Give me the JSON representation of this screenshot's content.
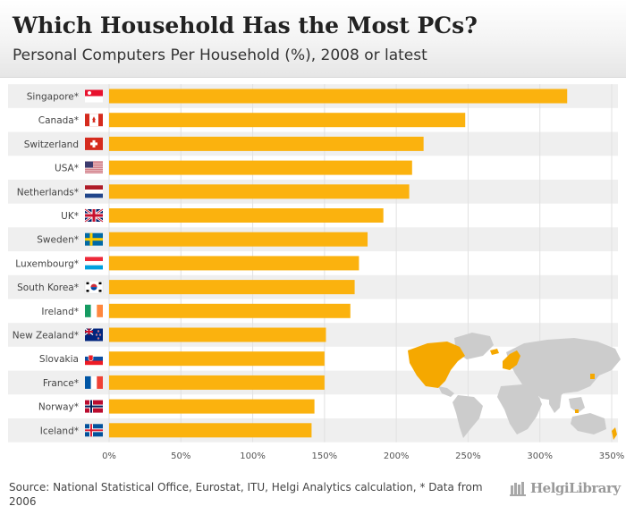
{
  "header": {
    "title": "Which Household Has the Most PCs?",
    "subtitle": "Personal Computers Per Household (%), 2008 or latest"
  },
  "footer": {
    "source": "Source: National Statistical Office, Eurostat, ITU, Helgi Analytics calculation, * Data from 2006",
    "brand": "HelgiLibrary"
  },
  "colors": {
    "bar": "#FBB20E",
    "row_band": "#EFEFEF",
    "map_land": "#CCCCCC",
    "map_highlight": "#F5A800"
  },
  "chart_data": {
    "type": "bar",
    "orientation": "horizontal",
    "title": "Which Household Has the Most PCs?",
    "subtitle": "Personal Computers Per Household (%), 2008 or latest",
    "categories": [
      "Singapore*",
      "Canada*",
      "Switzerland",
      "USA*",
      "Netherlands*",
      "UK*",
      "Sweden*",
      "Luxembourg*",
      "South Korea*",
      "Ireland*",
      "New Zealand*",
      "Slovakia",
      "France*",
      "Norway*",
      "Iceland*"
    ],
    "flags": [
      "singapore-flag",
      "canada-flag",
      "switzerland-flag",
      "usa-flag",
      "netherlands-flag",
      "uk-flag",
      "sweden-flag",
      "luxembourg-flag",
      "south-korea-flag",
      "ireland-flag",
      "new-zealand-flag",
      "slovakia-flag",
      "france-flag",
      "norway-flag",
      "iceland-flag"
    ],
    "values": [
      319,
      248,
      219,
      211,
      209,
      191,
      180,
      174,
      171,
      168,
      151,
      150,
      150,
      143,
      141
    ],
    "unit": "%",
    "xlim": [
      0,
      350
    ],
    "xticks": [
      0,
      50,
      100,
      150,
      200,
      250,
      300,
      350
    ],
    "xtick_labels": [
      "0%",
      "50%",
      "100%",
      "150%",
      "200%",
      "250%",
      "300%",
      "350%"
    ],
    "xlabel": "",
    "ylabel": "",
    "grid": true,
    "legend": "none"
  }
}
